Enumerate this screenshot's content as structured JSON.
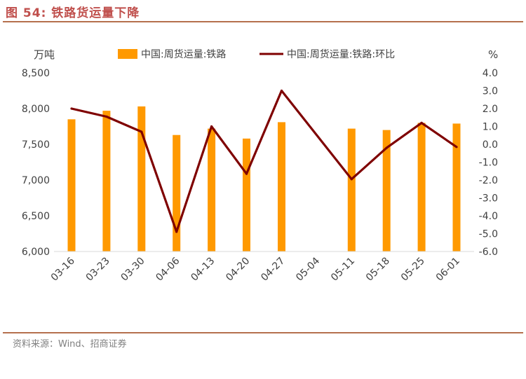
{
  "figure_title": "图 54:  铁路货运量下降",
  "source": "资料来源：Wind、招商证券",
  "chart_data": {
    "type": "bar+line",
    "categories": [
      "03-16",
      "03-23",
      "03-30",
      "04-06",
      "04-13",
      "04-20",
      "04-27",
      "05-04",
      "05-11",
      "05-18",
      "05-25",
      "06-01"
    ],
    "series": [
      {
        "name": "中国:周货运量:铁路",
        "type": "bar",
        "axis": "left",
        "color": "#ff9900",
        "values": [
          7850,
          7970,
          8030,
          7630,
          7720,
          7580,
          7810,
          null,
          7720,
          7700,
          7800,
          7790
        ]
      },
      {
        "name": "中国:周货运量:铁路:环比",
        "type": "line",
        "axis": "right",
        "color": "#7f0000",
        "values": [
          2.0,
          1.55,
          0.7,
          -4.9,
          1.0,
          -1.65,
          3.0,
          null,
          -1.95,
          -0.2,
          1.2,
          -0.15
        ]
      }
    ],
    "y_left": {
      "label": "万吨",
      "min": 6000,
      "max": 8500,
      "ticks": [
        "6,000",
        "6,500",
        "7,000",
        "7,500",
        "8,000",
        "8,500"
      ]
    },
    "y_right": {
      "label": "%",
      "min": -6.0,
      "max": 4.0,
      "ticks": [
        "-6.0",
        "-5.0",
        "-4.0",
        "-3.0",
        "-2.0",
        "-1.0",
        "0.0",
        "1.0",
        "2.0",
        "3.0",
        "4.0"
      ]
    },
    "grid": false,
    "legend_position": "top"
  }
}
